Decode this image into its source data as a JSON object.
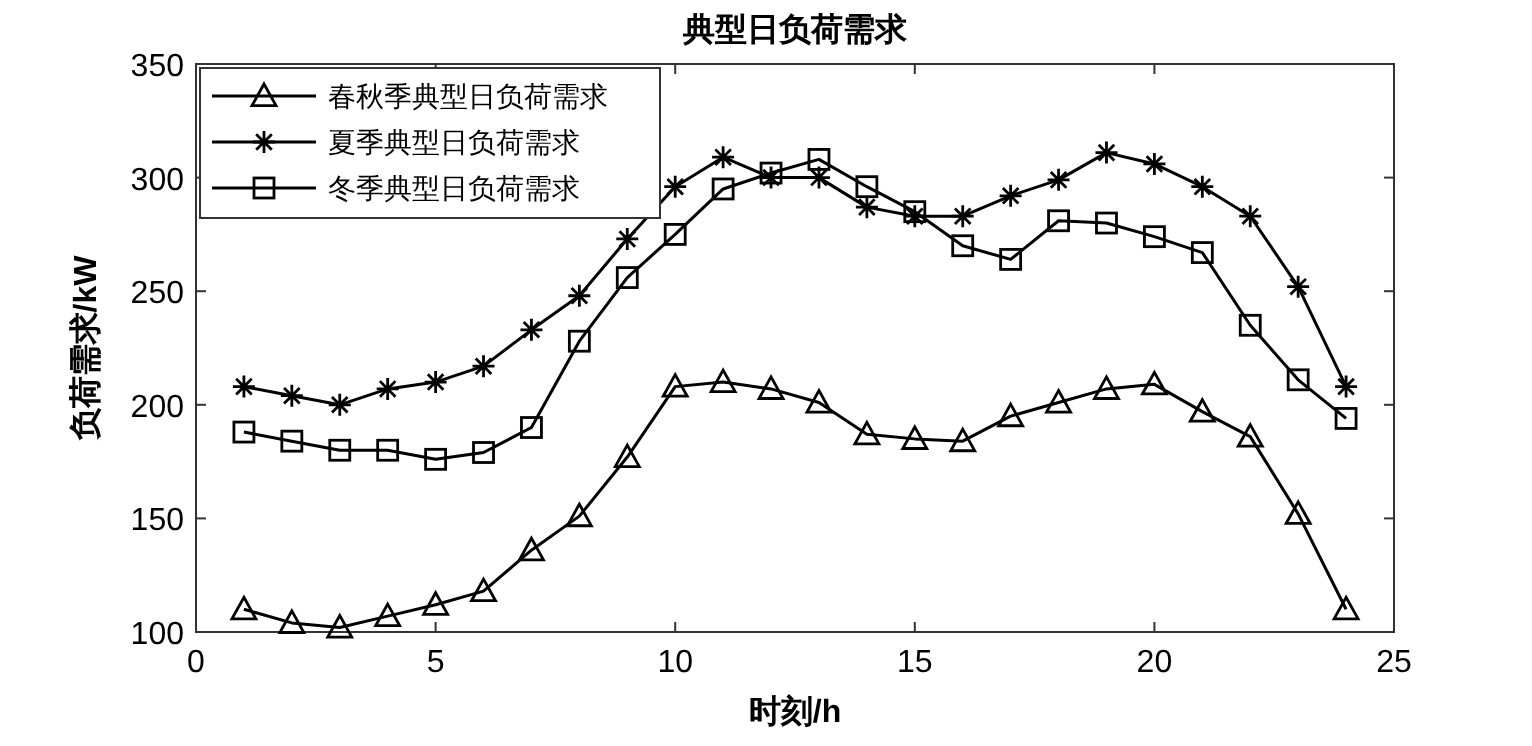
{
  "chart_data": {
    "type": "line",
    "title": "典型日负荷需求",
    "xlabel": "时刻/h",
    "ylabel": "负荷需求/kW",
    "x": [
      1,
      2,
      3,
      4,
      5,
      6,
      7,
      8,
      9,
      10,
      11,
      12,
      13,
      14,
      15,
      16,
      17,
      18,
      19,
      20,
      21,
      22,
      23,
      24
    ],
    "xlim": [
      0,
      25
    ],
    "xticks": [
      0,
      5,
      10,
      15,
      20,
      25
    ],
    "ylim": [
      100,
      350
    ],
    "yticks": [
      100,
      150,
      200,
      250,
      300,
      350
    ],
    "grid": false,
    "legend": "top left",
    "series": [
      {
        "name": "春秋季典型日负荷需求",
        "color": "#000000",
        "marker": "triangle",
        "values": [
          110,
          104,
          102,
          107,
          112,
          118,
          136,
          151,
          177,
          208,
          210,
          207,
          201,
          187,
          185,
          184,
          195,
          201,
          207,
          209,
          197,
          186,
          152,
          110
        ]
      },
      {
        "name": "夏季典型日负荷需求",
        "color": "#000000",
        "marker": "cross",
        "values": [
          208,
          204,
          200,
          207,
          210,
          217,
          233,
          248,
          273,
          296,
          309,
          300,
          300,
          287,
          283,
          283,
          292,
          299,
          311,
          306,
          296,
          283,
          252,
          208
        ]
      },
      {
        "name": "冬季典型日负荷需求",
        "color": "#000000",
        "marker": "square",
        "values": [
          188,
          184,
          180,
          180,
          176,
          179,
          190,
          228,
          256,
          275,
          295,
          302,
          308,
          296,
          285,
          270,
          264,
          281,
          280,
          274,
          267,
          235,
          211,
          194
        ]
      }
    ]
  }
}
